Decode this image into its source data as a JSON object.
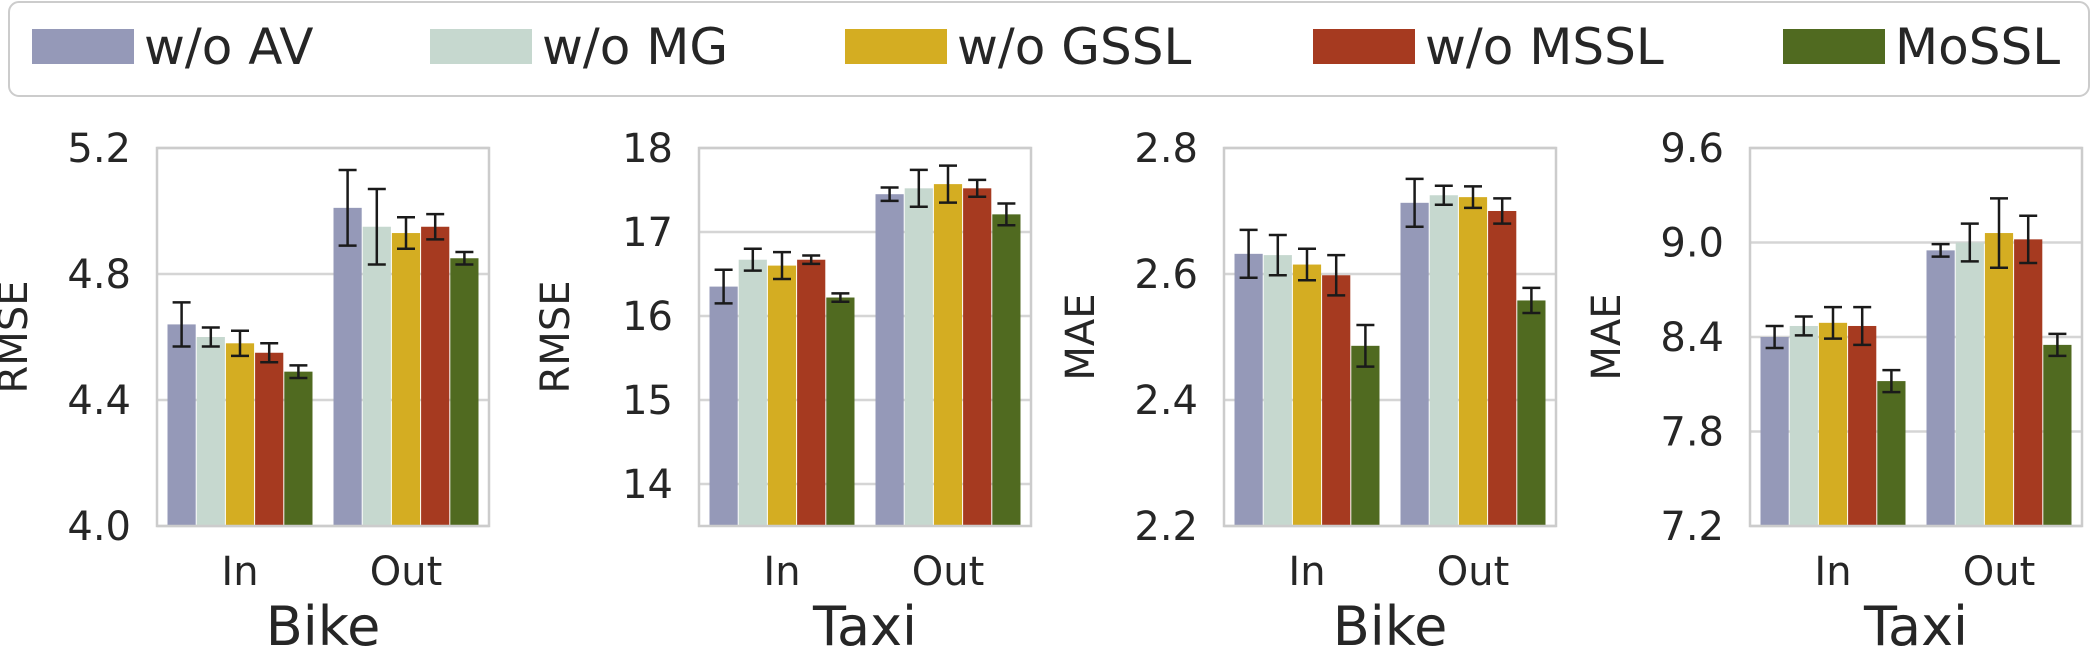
{
  "legend": {
    "entries": [
      {
        "label": "w/o AV",
        "color": "#9599B8"
      },
      {
        "label": "w/o MG",
        "color": "#C6D8CF"
      },
      {
        "label": "w/o GSSL",
        "color": "#D4AD22"
      },
      {
        "label": "w/o MSSL",
        "color": "#A63A20"
      },
      {
        "label": "MoSSL",
        "color": "#506A20"
      }
    ]
  },
  "chart_data": [
    {
      "type": "bar",
      "xlabel": "Bike",
      "ylabel": "RMSE",
      "categories": [
        "In",
        "Out"
      ],
      "ylim": [
        4.0,
        5.2
      ],
      "yticks": [
        "4.0",
        "4.4",
        "4.8",
        "5.2"
      ],
      "grid": true,
      "series": [
        {
          "name": "w/o AV",
          "values": [
            4.64,
            5.01
          ],
          "errors": [
            0.07,
            0.12
          ]
        },
        {
          "name": "w/o MG",
          "values": [
            4.6,
            4.95
          ],
          "errors": [
            0.03,
            0.12
          ]
        },
        {
          "name": "w/o GSSL",
          "values": [
            4.58,
            4.93
          ],
          "errors": [
            0.04,
            0.05
          ]
        },
        {
          "name": "w/o MSSL",
          "values": [
            4.55,
            4.95
          ],
          "errors": [
            0.03,
            0.04
          ]
        },
        {
          "name": "MoSSL",
          "values": [
            4.49,
            4.85
          ],
          "errors": [
            0.02,
            0.02
          ]
        }
      ]
    },
    {
      "type": "bar",
      "xlabel": "Taxi",
      "ylabel": "RMSE",
      "categories": [
        "In",
        "Out"
      ],
      "ylim": [
        13.5,
        18.0
      ],
      "yticks": [
        "14",
        "15",
        "16",
        "17",
        "18"
      ],
      "grid": true,
      "series": [
        {
          "name": "w/o AV",
          "values": [
            16.35,
            17.45
          ],
          "errors": [
            0.2,
            0.08
          ]
        },
        {
          "name": "w/o MG",
          "values": [
            16.67,
            17.52
          ],
          "errors": [
            0.13,
            0.22
          ]
        },
        {
          "name": "w/o GSSL",
          "values": [
            16.6,
            17.57
          ],
          "errors": [
            0.16,
            0.22
          ]
        },
        {
          "name": "w/o MSSL",
          "values": [
            16.67,
            17.52
          ],
          "errors": [
            0.05,
            0.1
          ]
        },
        {
          "name": "MoSSL",
          "values": [
            16.22,
            17.21
          ],
          "errors": [
            0.05,
            0.13
          ]
        }
      ]
    },
    {
      "type": "bar",
      "xlabel": "Bike",
      "ylabel": "MAE",
      "categories": [
        "In",
        "Out"
      ],
      "ylim": [
        2.2,
        2.8
      ],
      "yticks": [
        "2.2",
        "2.4",
        "2.6",
        "2.8"
      ],
      "grid": true,
      "series": [
        {
          "name": "w/o AV",
          "values": [
            2.632,
            2.713
          ],
          "errors": [
            0.038,
            0.038
          ]
        },
        {
          "name": "w/o MG",
          "values": [
            2.63,
            2.725
          ],
          "errors": [
            0.032,
            0.015
          ]
        },
        {
          "name": "w/o GSSL",
          "values": [
            2.615,
            2.722
          ],
          "errors": [
            0.025,
            0.017
          ]
        },
        {
          "name": "w/o MSSL",
          "values": [
            2.598,
            2.7
          ],
          "errors": [
            0.032,
            0.02
          ]
        },
        {
          "name": "MoSSL",
          "values": [
            2.486,
            2.558
          ],
          "errors": [
            0.033,
            0.02
          ]
        }
      ]
    },
    {
      "type": "bar",
      "xlabel": "Taxi",
      "ylabel": "MAE",
      "categories": [
        "In",
        "Out"
      ],
      "ylim": [
        7.2,
        9.6
      ],
      "yticks": [
        "7.2",
        "7.8",
        "8.4",
        "9.0",
        "9.6"
      ],
      "grid": true,
      "series": [
        {
          "name": "w/o AV",
          "values": [
            8.4,
            8.95
          ],
          "errors": [
            0.07,
            0.04
          ]
        },
        {
          "name": "w/o MG",
          "values": [
            8.47,
            9.0
          ],
          "errors": [
            0.06,
            0.12
          ]
        },
        {
          "name": "w/o GSSL",
          "values": [
            8.49,
            9.06
          ],
          "errors": [
            0.1,
            0.22
          ]
        },
        {
          "name": "w/o MSSL",
          "values": [
            8.47,
            9.02
          ],
          "errors": [
            0.12,
            0.15
          ]
        },
        {
          "name": "MoSSL",
          "values": [
            8.12,
            8.35
          ],
          "errors": [
            0.07,
            0.07
          ]
        }
      ]
    }
  ]
}
